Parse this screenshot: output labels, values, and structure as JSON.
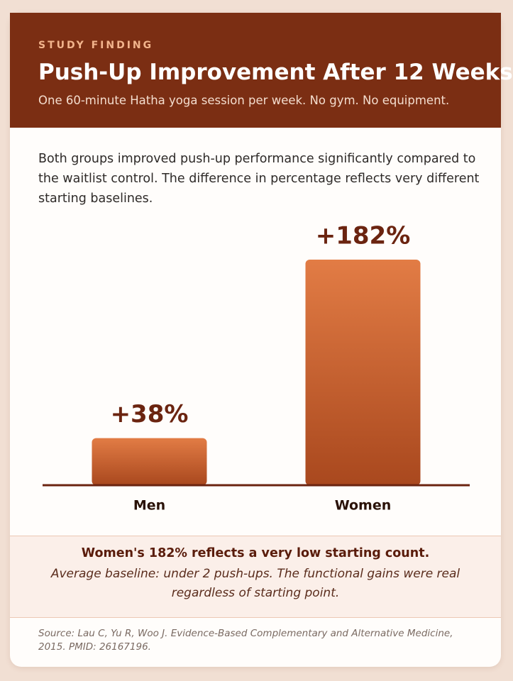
{
  "header": {
    "eyebrow": "STUDY FINDING",
    "title": "Push-Up Improvement After 12 Weeks",
    "subtitle": "One 60-minute Hatha yoga session per week. No gym. No equipment."
  },
  "description": "Both groups improved push-up performance significantly compared to the waitlist control. The difference in percentage reflects very different starting baselines.",
  "chart_data": {
    "type": "bar",
    "categories": [
      "Men",
      "Women"
    ],
    "values": [
      38,
      182
    ],
    "value_labels": [
      "+38%",
      "+182%"
    ],
    "color": "#c85e2c"
  },
  "note": {
    "headline": "Women's 182% reflects a very low starting count.",
    "text": "Average baseline: under 2 push-ups. The functional gains were real regardless of starting point."
  },
  "source": "Source: Lau C, Yu R, Woo J. Evidence-Based Complementary and Alternative Medicine, 2015. PMID: 26167196."
}
